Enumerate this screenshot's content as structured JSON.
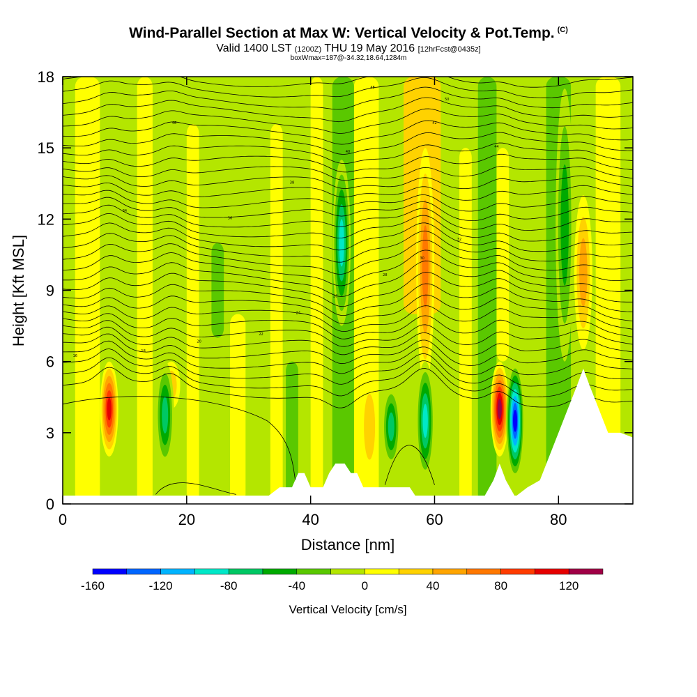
{
  "header": {
    "title": "Wind-Parallel Section at Max W: Vertical Velocity & Pot.Temp.",
    "copyright": "(C)",
    "subtitle_a": "Valid 1400 LST",
    "subtitle_b": "(1200Z)",
    "subtitle_c": "THU 19 May 2016",
    "subtitle_d": "[12hrFcst@0435z]",
    "info": "boxWmax=187@-34.32,18.64,1284m"
  },
  "chart_data": {
    "type": "heatmap",
    "title": "Wind-Parallel Section at Max W: Vertical Velocity & Pot.Temp.",
    "xlabel": "Distance [nm]",
    "ylabel": "Height [Kft MSL]",
    "xlim": [
      0,
      92
    ],
    "ylim": [
      0,
      18
    ],
    "x_ticks": [
      0,
      20,
      40,
      60,
      80
    ],
    "y_ticks": [
      0,
      3,
      6,
      9,
      12,
      15,
      18
    ],
    "colorbar": {
      "label": "Vertical Velocity [cm/s]",
      "bounds": [
        -160,
        -140,
        -120,
        -100,
        -80,
        -60,
        -40,
        -20,
        0,
        20,
        40,
        60,
        80,
        100,
        120,
        140
      ],
      "tick_values": [
        -160,
        -120,
        -80,
        -40,
        0,
        40,
        80,
        120
      ],
      "tick_labels": [
        "-160",
        "-120",
        "-80",
        "-40",
        "0",
        "40",
        "80",
        "120"
      ],
      "colors": [
        "#0000ff",
        "#0066ff",
        "#00b4ff",
        "#00e8c8",
        "#00c864",
        "#00aa00",
        "#5ac800",
        "#b4e600",
        "#ffff00",
        "#ffd200",
        "#ffa500",
        "#ff7800",
        "#ff3c00",
        "#e60000",
        "#a00046"
      ]
    },
    "updraft_cells": [
      {
        "x": 7.5,
        "z_min": 2.0,
        "z_max": 6.0,
        "w_max": 110
      },
      {
        "x": 17.5,
        "z_min": 4.0,
        "z_max": 6.0,
        "w_max": 30
      },
      {
        "x": 49.5,
        "z_min": 1.0,
        "z_max": 5.5,
        "w_max": 35
      },
      {
        "x": 58.5,
        "z_min": 5.0,
        "z_max": 15.0,
        "w_max": 80
      },
      {
        "x": 70.5,
        "z_min": 2.0,
        "z_max": 6.0,
        "w_max": 130
      },
      {
        "x": 84.0,
        "z_min": 6.5,
        "z_max": 13.0,
        "w_max": 50
      }
    ],
    "downdraft_cells": [
      {
        "x": 16.5,
        "z_min": 1.5,
        "z_max": 6.0,
        "w_min": -80
      },
      {
        "x": 45.0,
        "z_min": 7.5,
        "z_max": 14.5,
        "w_min": -90
      },
      {
        "x": 53.0,
        "z_min": 1.5,
        "z_max": 5.0,
        "w_min": -70
      },
      {
        "x": 58.5,
        "z_min": 1.0,
        "z_max": 6.0,
        "w_min": -100
      },
      {
        "x": 73.0,
        "z_min": 1.0,
        "z_max": 6.0,
        "w_min": -150
      },
      {
        "x": 81.0,
        "z_min": 6.0,
        "z_max": 17.5,
        "w_min": -60
      }
    ],
    "terrain": [
      [
        30,
        0.0
      ],
      [
        31,
        0.3
      ],
      [
        33,
        0.3
      ],
      [
        35,
        0.7
      ],
      [
        37,
        0.7
      ],
      [
        38,
        1.3
      ],
      [
        39,
        1.3
      ],
      [
        40,
        0.7
      ],
      [
        42,
        0.7
      ],
      [
        43,
        1.3
      ],
      [
        44,
        1.7
      ],
      [
        45.5,
        1.7
      ],
      [
        46.5,
        1.3
      ],
      [
        47.5,
        1.3
      ],
      [
        48.5,
        0.7
      ],
      [
        56,
        0.7
      ],
      [
        57,
        0.3
      ],
      [
        62,
        0.3
      ],
      [
        63,
        0.0
      ],
      [
        65,
        0.3
      ],
      [
        68,
        0.3
      ],
      [
        69.5,
        1.0
      ],
      [
        70.5,
        1.7
      ],
      [
        71.5,
        1.0
      ],
      [
        73,
        0.3
      ],
      [
        75,
        0.7
      ],
      [
        77,
        1.0
      ],
      [
        78.5,
        2.0
      ],
      [
        80,
        3.0
      ],
      [
        81.5,
        4.0
      ],
      [
        83,
        5.0
      ],
      [
        84,
        5.7
      ],
      [
        85,
        5.0
      ],
      [
        86.5,
        4.0
      ],
      [
        88,
        3.0
      ],
      [
        90,
        3.0
      ],
      [
        92,
        2.8
      ]
    ],
    "theta_isentrope_labels": [
      "16",
      "18",
      "20",
      "22",
      "24",
      "26",
      "28",
      "30",
      "32",
      "34",
      "36",
      "38",
      "40",
      "42",
      "44",
      "46",
      "48",
      "50"
    ]
  }
}
